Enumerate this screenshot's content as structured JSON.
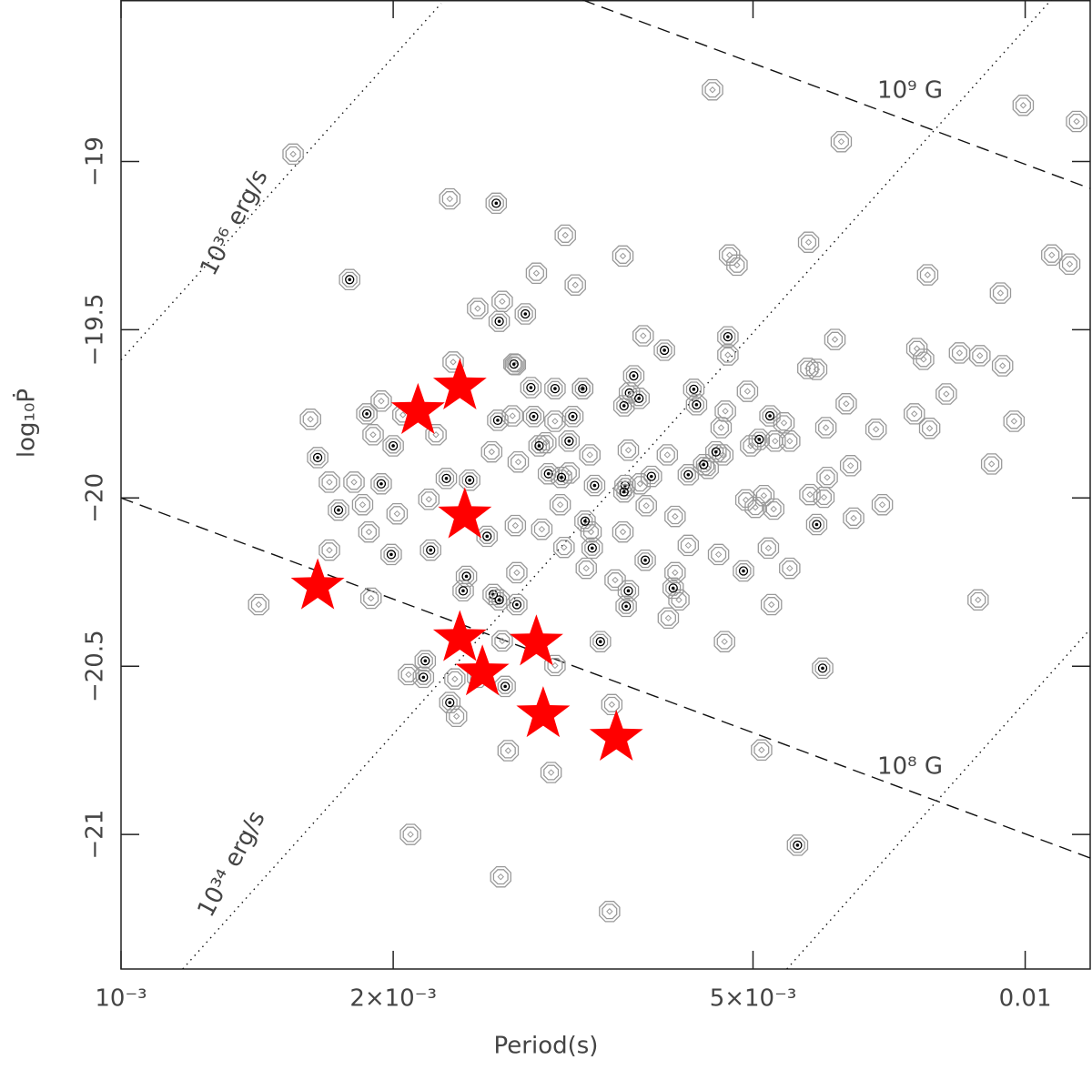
{
  "chart_data": {
    "type": "scatter",
    "x_label": "Period(s)",
    "y_label": "log₁₀Ṗ",
    "xscale": "log",
    "xlim": [
      0.001,
      0.0118
    ],
    "ylim": [
      -21.4,
      -18.52
    ],
    "xticks": [
      {
        "value": 0.001,
        "label": "10⁻³"
      },
      {
        "value": 0.002,
        "label": "2×10⁻³"
      },
      {
        "value": 0.005,
        "label": "5×10⁻³"
      },
      0.01
    ],
    "yticks": [
      {
        "value": -19,
        "label": "−19"
      },
      {
        "value": -19.5,
        "label": "−19.5"
      },
      {
        "value": -20,
        "label": "−20"
      },
      {
        "value": -20.5,
        "label": "−20.5"
      },
      {
        "value": -21,
        "label": "−21"
      }
    ],
    "reference_lines": [
      {
        "label": "10⁹ G",
        "style": "dashed",
        "x": [
          0.00324,
          0.0118
        ],
        "y": [
          -18.52,
          -19.08
        ]
      },
      {
        "label": "10⁸ G",
        "style": "dashed",
        "x": [
          0.001,
          0.0118
        ],
        "y": [
          -20.0,
          -21.07
        ]
      },
      {
        "label": "10³⁶ erg/s",
        "style": "dotted",
        "x": [
          0.001,
          0.00226
        ],
        "y": [
          -19.59,
          -18.53
        ]
      },
      {
        "label": "10³⁴ erg/s",
        "style": "dotted",
        "x": [
          0.00117,
          0.0111
        ],
        "y": [
          -21.4,
          -18.47
        ]
      },
      {
        "style": "dotted",
        "x": [
          0.00545,
          0.0118
        ],
        "y": [
          -21.4,
          -20.39
        ]
      }
    ],
    "series": [
      {
        "marker": "octagon",
        "color": "#999999",
        "x": [
          0.00155,
          0.00231,
          0.00451,
          0.00995,
          0.0114,
          0.00626,
          0.0031,
          0.00359,
          0.00471,
          0.0048,
          0.00576,
          0.0107,
          0.0112,
          0.0078,
          0.00939,
          0.00288,
          0.00318,
          0.00264,
          0.00248,
          0.00273,
          0.00233,
          0.00378,
          0.00469,
          0.00616,
          0.00575,
          0.00588,
          0.00759,
          0.00772,
          0.00846,
          0.00891,
          0.00944,
          0.00818,
          0.00972,
          0.00754,
          0.00784,
          0.00684,
          0.00602,
          0.00634,
          0.00549,
          0.00493,
          0.00466,
          0.00461,
          0.00463,
          0.00402,
          0.00446,
          0.00364,
          0.00375,
          0.0033,
          0.00271,
          0.00302,
          0.00324,
          0.00295,
          0.00313,
          0.00306,
          0.00275,
          0.00257,
          0.00223,
          0.00219,
          0.00205,
          0.00194,
          0.0019,
          0.00181,
          0.00185,
          0.00162,
          0.0017,
          0.00202,
          0.0017,
          0.00188,
          0.00189,
          0.00142,
          0.00273,
          0.00292,
          0.00309,
          0.00331,
          0.00359,
          0.00381,
          0.0041,
          0.00424,
          0.00458,
          0.0041,
          0.00414,
          0.00403,
          0.00465,
          0.0052,
          0.00549,
          0.00524,
          0.00578,
          0.00599,
          0.00604,
          0.00646,
          0.00695,
          0.00491,
          0.00503,
          0.00514,
          0.00527,
          0.00497,
          0.00529,
          0.00541,
          0.00641,
          0.00918,
          0.00887,
          0.00511,
          0.00264,
          0.00302,
          0.00349,
          0.00208,
          0.00235,
          0.00268,
          0.00299,
          0.00209,
          0.00263,
          0.00347,
          0.00248,
          0.00234,
          0.00327,
          0.00352,
          0.00274
        ],
        "values": [
          -18.978,
          -19.111,
          -18.787,
          -18.833,
          -18.881,
          -18.941,
          -19.219,
          -19.281,
          -19.278,
          -19.308,
          -19.24,
          -19.278,
          -19.305,
          -19.337,
          -19.391,
          -19.332,
          -19.367,
          -19.416,
          -19.437,
          -19.604,
          -19.596,
          -19.518,
          -19.575,
          -19.529,
          -19.615,
          -19.618,
          -19.556,
          -19.588,
          -19.569,
          -19.577,
          -19.607,
          -19.691,
          -19.772,
          -19.75,
          -19.793,
          -19.796,
          -19.791,
          -19.72,
          -19.831,
          -19.683,
          -19.742,
          -19.791,
          -19.872,
          -19.872,
          -19.912,
          -19.858,
          -19.958,
          -19.872,
          -19.756,
          -19.772,
          -19.675,
          -19.836,
          -19.926,
          -20.02,
          -19.893,
          -19.863,
          -19.812,
          -20.004,
          -19.753,
          -19.712,
          -19.812,
          -19.953,
          -20.02,
          -19.766,
          -19.953,
          -20.047,
          -20.155,
          -20.101,
          -20.298,
          -20.317,
          -20.082,
          -20.093,
          -20.147,
          -20.101,
          -20.101,
          -20.023,
          -20.055,
          -20.141,
          -20.168,
          -20.222,
          -20.303,
          -20.357,
          -20.427,
          -20.149,
          -20.209,
          -20.317,
          -19.99,
          -19.998,
          -19.939,
          -20.06,
          -20.02,
          -20.006,
          -20.028,
          -19.993,
          -20.033,
          -19.845,
          -19.831,
          -19.777,
          -19.904,
          -19.899,
          -20.303,
          -20.749,
          -20.425,
          -20.498,
          -20.614,
          -20.525,
          -20.649,
          -20.751,
          -20.816,
          -21.0,
          -21.126,
          -21.229,
          -20.533,
          -20.538,
          -20.209,
          -20.244,
          -20.222
        ]
      },
      {
        "marker": "octagon",
        "color": "#999999",
        "center_color": "#000000",
        "x": [
          0.0026,
          0.00179,
          0.00262,
          0.0028,
          0.00272,
          0.00284,
          0.00302,
          0.00324,
          0.00369,
          0.00365,
          0.00374,
          0.0036,
          0.0043,
          0.00433,
          0.00399,
          0.00469,
          0.00261,
          0.00286,
          0.00316,
          0.00313,
          0.002,
          0.00187,
          0.00165,
          0.00174,
          0.00194,
          0.00229,
          0.00243,
          0.0029,
          0.00297,
          0.00307,
          0.00334,
          0.00361,
          0.0036,
          0.00424,
          0.00386,
          0.00441,
          0.00455,
          0.00508,
          0.00522,
          0.00588,
          0.00326,
          0.00332,
          0.00254,
          0.0022,
          0.00199,
          0.00241,
          0.00239,
          0.00258,
          0.00262,
          0.00274,
          0.00364,
          0.00408,
          0.00488,
          0.0038,
          0.00362,
          0.00339,
          0.00266,
          0.00231,
          0.00217,
          0.00216,
          0.00597,
          0.0056
        ],
        "values": [
          -19.124,
          -19.351,
          -19.475,
          -19.453,
          -19.602,
          -19.672,
          -19.675,
          -19.675,
          -19.637,
          -19.688,
          -19.704,
          -19.726,
          -19.677,
          -19.723,
          -19.561,
          -19.521,
          -19.769,
          -19.758,
          -19.758,
          -19.831,
          -19.845,
          -19.75,
          -19.88,
          -20.036,
          -19.958,
          -19.942,
          -19.947,
          -19.845,
          -19.928,
          -19.939,
          -19.963,
          -19.963,
          -19.982,
          -19.931,
          -19.936,
          -19.901,
          -19.863,
          -19.826,
          -19.756,
          -20.079,
          -20.069,
          -20.149,
          -20.114,
          -20.155,
          -20.168,
          -20.233,
          -20.276,
          -20.287,
          -20.303,
          -20.317,
          -20.276,
          -20.268,
          -20.217,
          -20.185,
          -20.322,
          -20.427,
          -20.56,
          -20.608,
          -20.484,
          -20.533,
          -20.506,
          -21.032
        ]
      },
      {
        "marker": "star",
        "color": "#ff0000",
        "x": [
          0.00213,
          0.00237,
          0.0024,
          0.00165,
          0.00237,
          0.00288,
          0.00251,
          0.00293,
          0.00353
        ],
        "values": [
          -19.742,
          -19.669,
          -20.052,
          -20.263,
          -20.417,
          -20.43,
          -20.519,
          -20.643,
          -20.713
        ]
      }
    ]
  }
}
